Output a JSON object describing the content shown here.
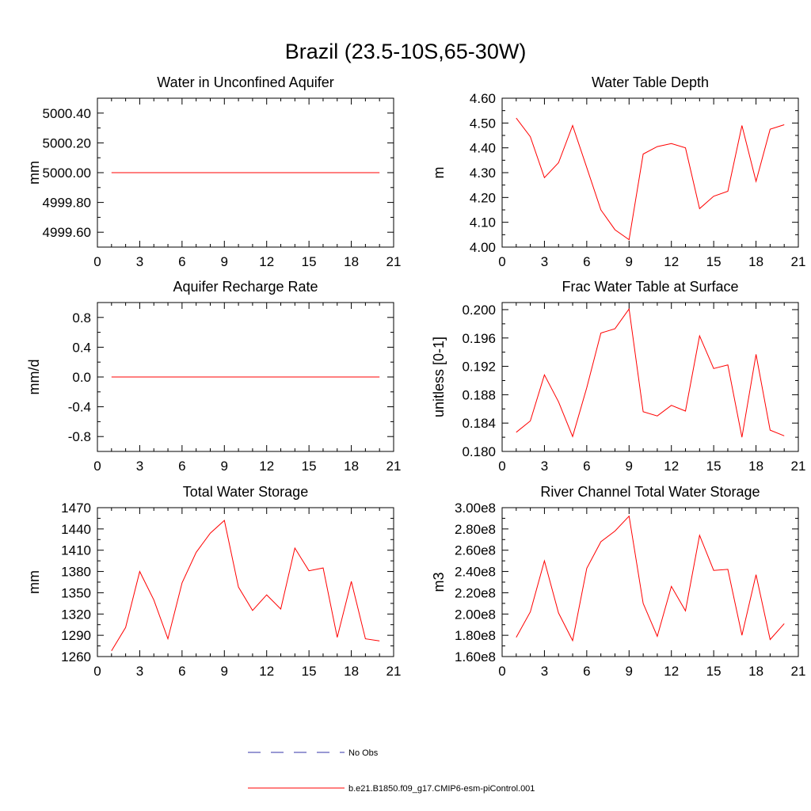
{
  "title": "Brazil (23.5-10S,65-30W)",
  "chart_data": [
    {
      "type": "line",
      "title": "Water in Unconfined Aquifer",
      "ylabel": "mm",
      "xlim": [
        0,
        21
      ],
      "ylim": [
        4999.5,
        5000.5
      ],
      "xticks": [
        "0",
        "3",
        "6",
        "9",
        "12",
        "15",
        "18",
        "21"
      ],
      "yticks": [
        4999.6,
        4999.8,
        5000.0,
        5000.2,
        5000.4
      ],
      "ytick_labels": [
        "4999.60",
        "4999.80",
        "5000.00",
        "5000.20",
        "5000.40"
      ],
      "x": [
        1,
        2,
        3,
        4,
        5,
        6,
        7,
        8,
        9,
        10,
        11,
        12,
        13,
        14,
        15,
        16,
        17,
        18,
        19,
        20
      ],
      "series": [
        {
          "values": [
            5000,
            5000,
            5000,
            5000,
            5000,
            5000,
            5000,
            5000,
            5000,
            5000,
            5000,
            5000,
            5000,
            5000,
            5000,
            5000,
            5000,
            5000,
            5000,
            5000
          ],
          "color": "#ff0000"
        }
      ]
    },
    {
      "type": "line",
      "title": "Water Table Depth",
      "ylabel": "m",
      "xlim": [
        0,
        21
      ],
      "ylim": [
        4.0,
        4.6
      ],
      "xticks": [
        "0",
        "3",
        "6",
        "9",
        "12",
        "15",
        "18",
        "21"
      ],
      "yticks": [
        4.0,
        4.1,
        4.2,
        4.3,
        4.4,
        4.5,
        4.6
      ],
      "ytick_labels": [
        "4.00",
        "4.10",
        "4.20",
        "4.30",
        "4.40",
        "4.50",
        "4.60"
      ],
      "x": [
        1,
        2,
        3,
        4,
        5,
        6,
        7,
        8,
        9,
        10,
        11,
        12,
        13,
        14,
        15,
        16,
        17,
        18,
        19,
        20
      ],
      "series": [
        {
          "values": [
            4.52,
            4.445,
            4.28,
            4.34,
            4.49,
            4.32,
            4.15,
            4.07,
            4.03,
            4.375,
            4.405,
            4.417,
            4.4,
            4.155,
            4.205,
            4.225,
            4.49,
            4.265,
            4.475,
            4.493
          ],
          "color": "#ff0000"
        }
      ]
    },
    {
      "type": "line",
      "title": "Aquifer Recharge Rate",
      "ylabel": "mm/d",
      "xlim": [
        0,
        21
      ],
      "ylim": [
        -1.0,
        1.0
      ],
      "xticks": [
        "0",
        "3",
        "6",
        "9",
        "12",
        "15",
        "18",
        "21"
      ],
      "yticks": [
        -0.8,
        -0.4,
        0.0,
        0.4,
        0.8
      ],
      "ytick_labels": [
        "-0.8",
        "-0.4",
        "0.0",
        "0.4",
        "0.8"
      ],
      "x": [
        1,
        2,
        3,
        4,
        5,
        6,
        7,
        8,
        9,
        10,
        11,
        12,
        13,
        14,
        15,
        16,
        17,
        18,
        19,
        20
      ],
      "series": [
        {
          "values": [
            0,
            0,
            0,
            0,
            0,
            0,
            0,
            0,
            0,
            0,
            0,
            0,
            0,
            0,
            0,
            0,
            0,
            0,
            0,
            0
          ],
          "color": "#ff0000"
        }
      ]
    },
    {
      "type": "line",
      "title": "Frac Water Table at Surface",
      "ylabel": "unitless [0-1]",
      "xlim": [
        0,
        21
      ],
      "ylim": [
        0.18,
        0.201
      ],
      "xticks": [
        "0",
        "3",
        "6",
        "9",
        "12",
        "15",
        "18",
        "21"
      ],
      "yticks": [
        0.18,
        0.184,
        0.188,
        0.192,
        0.196,
        0.2
      ],
      "ytick_labels": [
        "0.180",
        "0.184",
        "0.188",
        "0.192",
        "0.196",
        "0.200"
      ],
      "x": [
        1,
        2,
        3,
        4,
        5,
        6,
        7,
        8,
        9,
        10,
        11,
        12,
        13,
        14,
        15,
        16,
        17,
        18,
        19,
        20
      ],
      "series": [
        {
          "values": [
            0.1827,
            0.1843,
            0.1908,
            0.187,
            0.1821,
            0.189,
            0.1967,
            0.1973,
            0.2001,
            0.1856,
            0.185,
            0.1865,
            0.1857,
            0.1963,
            0.1917,
            0.1922,
            0.182,
            0.1937,
            0.183,
            0.1822
          ],
          "color": "#ff0000"
        }
      ]
    },
    {
      "type": "line",
      "title": "Total Water Storage",
      "ylabel": "mm",
      "xlim": [
        0,
        21
      ],
      "ylim": [
        1260,
        1470
      ],
      "xticks": [
        "0",
        "3",
        "6",
        "9",
        "12",
        "15",
        "18",
        "21"
      ],
      "yticks": [
        1260,
        1290,
        1320,
        1350,
        1380,
        1410,
        1440,
        1470
      ],
      "ytick_labels": [
        "1260",
        "1290",
        "1320",
        "1350",
        "1380",
        "1410",
        "1440",
        "1470"
      ],
      "x": [
        1,
        2,
        3,
        4,
        5,
        6,
        7,
        8,
        9,
        10,
        11,
        12,
        13,
        14,
        15,
        16,
        17,
        18,
        19,
        20
      ],
      "series": [
        {
          "values": [
            1268,
            1301,
            1380,
            1340,
            1285,
            1364,
            1407,
            1434,
            1452,
            1358,
            1325,
            1347,
            1327,
            1413,
            1381,
            1385,
            1287,
            1366,
            1285,
            1282
          ],
          "color": "#ff0000"
        }
      ]
    },
    {
      "type": "line",
      "title": "River Channel Total Water Storage",
      "ylabel": "m3",
      "xlim": [
        0,
        21
      ],
      "ylim": [
        160000000,
        300000000
      ],
      "xticks": [
        "0",
        "3",
        "6",
        "9",
        "12",
        "15",
        "18",
        "21"
      ],
      "yticks": [
        160000000,
        180000000,
        200000000,
        220000000,
        240000000,
        260000000,
        280000000,
        300000000
      ],
      "ytick_labels": [
        "1.60e8",
        "1.80e8",
        "2.00e8",
        "2.20e8",
        "2.40e8",
        "2.60e8",
        "2.80e8",
        "3.00e8"
      ],
      "x": [
        1,
        2,
        3,
        4,
        5,
        6,
        7,
        8,
        9,
        10,
        11,
        12,
        13,
        14,
        15,
        16,
        17,
        18,
        19,
        20
      ],
      "series": [
        {
          "values": [
            178000000,
            202000000,
            250000000,
            201000000,
            175000000,
            243000000,
            268000000,
            278000000,
            292000000,
            210000000,
            179000000,
            226000000,
            203000000,
            274000000,
            241000000,
            242000000,
            180000000,
            237000000,
            176000000,
            191000000
          ],
          "color": "#ff0000"
        }
      ]
    }
  ],
  "legend": [
    {
      "label": "No Obs",
      "color": "#3333aa",
      "dash": true
    },
    {
      "label": "b.e21.B1850.f09_g17.CMIP6-esm-piControl.001",
      "color": "#ff0000",
      "dash": false
    }
  ]
}
